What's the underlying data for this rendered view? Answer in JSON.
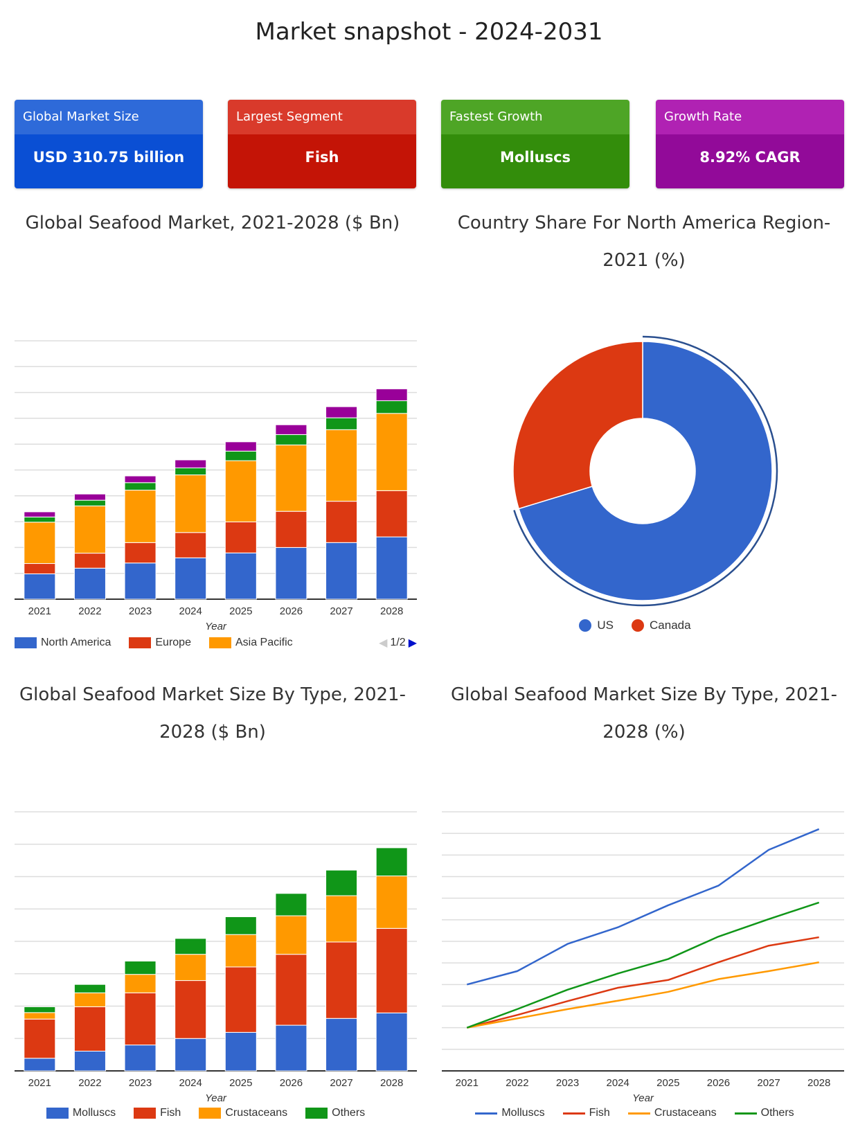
{
  "page_title": "Market snapshot - 2024-2031",
  "cards": [
    {
      "label": "Global Market Size",
      "value": "USD 310.75 billion",
      "header_color": "#2e6ad9",
      "body_color": "#0a4fd4"
    },
    {
      "label": "Largest Segment",
      "value": "Fish",
      "header_color": "#d93a2b",
      "body_color": "#c41406"
    },
    {
      "label": "Fastest Growth",
      "value": "Molluscs",
      "header_color": "#4ea526",
      "body_color": "#338d0b"
    },
    {
      "label": "Growth Rate",
      "value": "8.92% CAGR",
      "header_color": "#b022b3",
      "body_color": "#920a99"
    }
  ],
  "chart_data": [
    {
      "type": "bar",
      "stacked": true,
      "title": "Global Seafood Market, 2021-2028 ($ Bn)",
      "xlabel": "Year",
      "ylabel": "",
      "ylim": [
        0,
        10
      ],
      "grid": true,
      "legend": "bottom",
      "legend_page": "1/2",
      "categories": [
        "2021",
        "2022",
        "2023",
        "2024",
        "2025",
        "2026",
        "2027",
        "2028"
      ],
      "series": [
        {
          "name": "North America",
          "color": "#3366cc",
          "values": [
            0.98,
            1.2,
            1.4,
            1.6,
            1.79,
            2.0,
            2.19,
            2.41
          ]
        },
        {
          "name": "Europe",
          "color": "#dc3912",
          "values": [
            0.4,
            0.58,
            0.79,
            0.98,
            1.2,
            1.4,
            1.6,
            1.79
          ]
        },
        {
          "name": "Asia Pacific",
          "color": "#ff9900",
          "values": [
            1.6,
            1.83,
            2.03,
            2.23,
            2.37,
            2.57,
            2.77,
            2.99
          ]
        },
        {
          "color": "#109618",
          "values": [
            0.2,
            0.22,
            0.29,
            0.27,
            0.37,
            0.4,
            0.46,
            0.49
          ]
        },
        {
          "color": "#990099",
          "values": [
            0.2,
            0.24,
            0.26,
            0.31,
            0.36,
            0.38,
            0.43,
            0.46
          ]
        }
      ]
    },
    {
      "type": "pie",
      "donut": true,
      "title": "Country Share For North America Region- 2021 (%)",
      "legend": "bottom",
      "categories": [
        "US",
        "Canada"
      ],
      "values": [
        70.3,
        29.7
      ],
      "colors": [
        "#3366cc",
        "#dc3912"
      ]
    },
    {
      "type": "bar",
      "stacked": true,
      "title": "Global Seafood Market Size By Type, 2021-2028 ($ Bn)",
      "xlabel": "Year",
      "ylabel": "",
      "ylim": [
        0,
        8
      ],
      "grid": true,
      "legend": "bottom",
      "categories": [
        "2021",
        "2022",
        "2023",
        "2024",
        "2025",
        "2026",
        "2027",
        "2028"
      ],
      "series": [
        {
          "name": "Molluscs",
          "color": "#3366cc",
          "values": [
            0.39,
            0.61,
            0.8,
            1.0,
            1.19,
            1.41,
            1.62,
            1.79
          ]
        },
        {
          "name": "Fish",
          "color": "#dc3912",
          "values": [
            1.21,
            1.37,
            1.61,
            1.79,
            2.02,
            2.19,
            2.36,
            2.61
          ]
        },
        {
          "name": "Crustaceans",
          "color": "#ff9900",
          "values": [
            0.2,
            0.43,
            0.57,
            0.81,
            1.0,
            1.19,
            1.43,
            1.62
          ]
        },
        {
          "name": "Others",
          "color": "#109618",
          "values": [
            0.18,
            0.26,
            0.41,
            0.49,
            0.55,
            0.69,
            0.79,
            0.87
          ]
        }
      ]
    },
    {
      "type": "line",
      "title": "Global Seafood Market Size By Type, 2021-2028 (%)",
      "xlabel": "Year",
      "ylabel": "",
      "ylim": [
        0,
        12
      ],
      "grid": true,
      "legend": "bottom",
      "categories": [
        "2021",
        "2022",
        "2023",
        "2024",
        "2025",
        "2026",
        "2027",
        "2028"
      ],
      "series": [
        {
          "name": "Molluscs",
          "color": "#3366cc",
          "values": [
            4.0,
            4.62,
            5.88,
            6.65,
            7.67,
            8.58,
            10.24,
            11.2
          ]
        },
        {
          "name": "Fish",
          "color": "#dc3912",
          "values": [
            2.0,
            2.59,
            3.23,
            3.85,
            4.21,
            5.03,
            5.8,
            6.19
          ]
        },
        {
          "name": "Crustaceans",
          "color": "#ff9900",
          "values": [
            2.0,
            2.43,
            2.86,
            3.25,
            3.66,
            4.25,
            4.62,
            5.03
          ]
        },
        {
          "name": "Others",
          "color": "#109618",
          "values": [
            2.0,
            2.86,
            3.76,
            4.51,
            5.18,
            6.22,
            7.03,
            7.8
          ]
        }
      ]
    }
  ]
}
